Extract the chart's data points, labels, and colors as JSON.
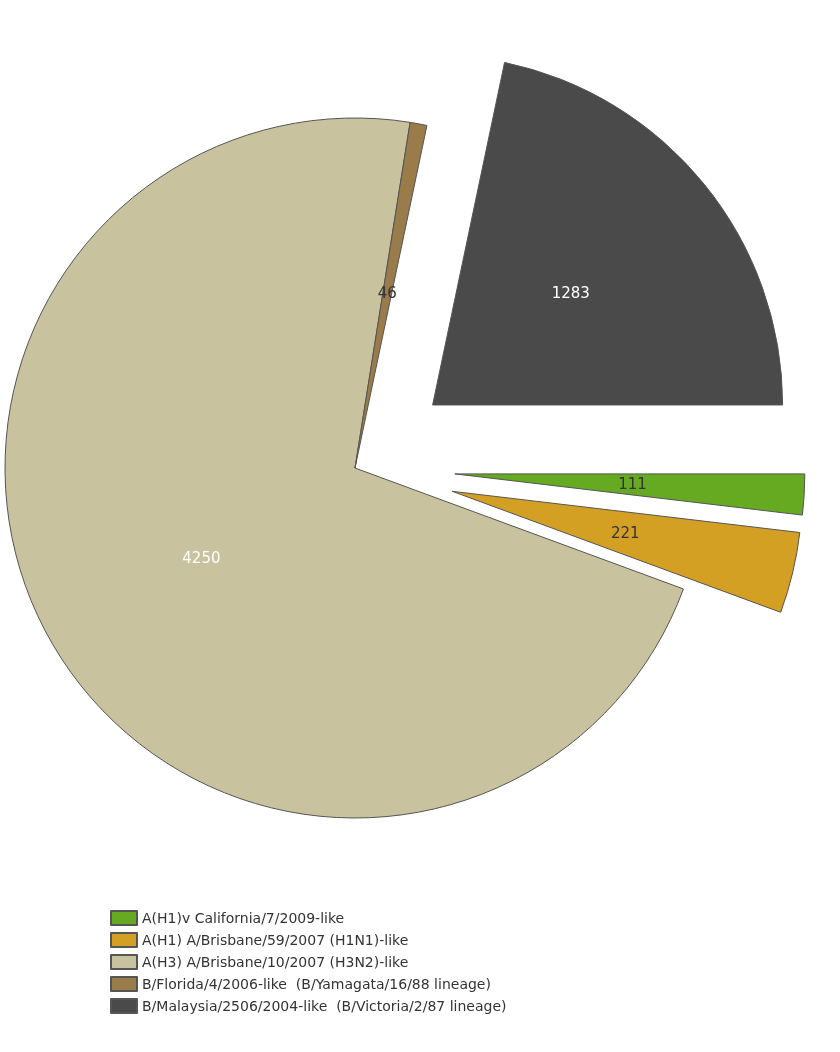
{
  "chart_data": {
    "type": "pie",
    "categories": [
      "A(H1)v California/7/2009-like",
      "A(H1) A/Brisbane/59/2007 (H1N1)-like",
      "A(H3) A/Brisbane/10/2007 (H3N2)-like",
      "B/Florida/4/2006-like  (B/Yamagata/16/88 lineage)",
      "B/Malaysia/2506/2004-like  (B/Victoria/2/87 lineage)"
    ],
    "values": [
      111,
      221,
      4250,
      46,
      1283
    ],
    "colors": [
      "#66aa22",
      "#d4a024",
      "#c8c29e",
      "#9a7b4a",
      "#4a4a4a"
    ],
    "data_labels": true,
    "legend": "bottom"
  }
}
